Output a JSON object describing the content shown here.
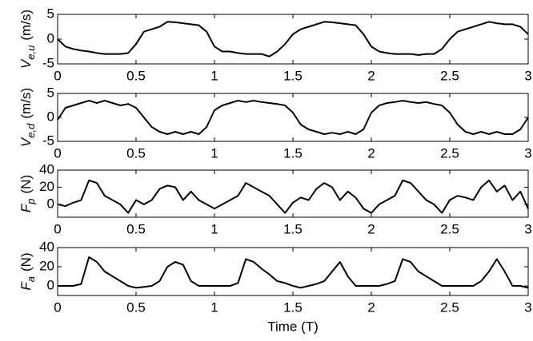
{
  "chart_data": [
    {
      "type": "line",
      "ylabel": {
        "symbol": "V",
        "subscript": "e,u",
        "unit": "(m/s)"
      },
      "x": [
        0,
        0.05,
        0.1,
        0.15,
        0.2,
        0.25,
        0.3,
        0.35,
        0.4,
        0.45,
        0.5,
        0.55,
        0.6,
        0.65,
        0.7,
        0.75,
        0.8,
        0.85,
        0.9,
        0.95,
        1,
        1.05,
        1.1,
        1.15,
        1.2,
        1.25,
        1.3,
        1.35,
        1.4,
        1.45,
        1.5,
        1.55,
        1.6,
        1.65,
        1.7,
        1.75,
        1.8,
        1.85,
        1.9,
        1.95,
        2,
        2.05,
        2.1,
        2.15,
        2.2,
        2.25,
        2.3,
        2.35,
        2.4,
        2.45,
        2.5,
        2.55,
        2.6,
        2.65,
        2.7,
        2.75,
        2.8,
        2.85,
        2.9,
        2.95,
        3
      ],
      "series": [
        {
          "color": "#000000",
          "values": [
            0,
            -1.5,
            -2,
            -2.3,
            -2.5,
            -2.8,
            -3,
            -3,
            -3,
            -2.8,
            -1,
            1.5,
            2,
            2.5,
            3.5,
            3.4,
            3.2,
            3,
            2.8,
            1.5,
            -1.5,
            -2.5,
            -2.5,
            -2.8,
            -3,
            -3,
            -3,
            -3.5,
            -2.5,
            -1,
            1,
            2,
            2.5,
            3,
            3.5,
            3.4,
            3.2,
            3,
            2.8,
            1,
            -1.5,
            -2.5,
            -2.8,
            -3,
            -3,
            -3,
            -3.2,
            -3,
            -3,
            -2,
            0,
            1.5,
            2,
            2.5,
            3,
            3.5,
            3.2,
            3,
            3,
            2.5,
            1
          ]
        }
      ],
      "xlim": [
        0,
        3
      ],
      "xticks": [
        0,
        0.5,
        1,
        1.5,
        2,
        2.5,
        3
      ],
      "ylim": [
        -5,
        5
      ],
      "yticks": [
        -5,
        0,
        5
      ]
    },
    {
      "type": "line",
      "ylabel": {
        "symbol": "V",
        "subscript": "e,d",
        "unit": "(m/s)"
      },
      "x": [
        0,
        0.05,
        0.1,
        0.15,
        0.2,
        0.25,
        0.3,
        0.35,
        0.4,
        0.45,
        0.5,
        0.55,
        0.6,
        0.65,
        0.7,
        0.75,
        0.8,
        0.85,
        0.9,
        0.95,
        1,
        1.05,
        1.1,
        1.15,
        1.2,
        1.25,
        1.3,
        1.35,
        1.4,
        1.45,
        1.5,
        1.55,
        1.6,
        1.65,
        1.7,
        1.75,
        1.8,
        1.85,
        1.9,
        1.95,
        2,
        2.05,
        2.1,
        2.15,
        2.2,
        2.25,
        2.3,
        2.35,
        2.4,
        2.45,
        2.5,
        2.55,
        2.6,
        2.65,
        2.7,
        2.75,
        2.8,
        2.85,
        2.9,
        2.95,
        3
      ],
      "series": [
        {
          "color": "#000000",
          "values": [
            -0.5,
            2,
            2.5,
            3,
            3.5,
            3,
            3.5,
            3,
            2.5,
            2.8,
            2,
            0,
            -2,
            -3,
            -3.5,
            -3,
            -3.5,
            -3,
            -3.5,
            -2,
            1.5,
            2.5,
            3,
            3.5,
            3.2,
            3.5,
            3.2,
            3,
            2.8,
            2.5,
            1,
            -1.5,
            -2.5,
            -3,
            -3.5,
            -3.2,
            -3.5,
            -3,
            -3.5,
            -2.5,
            1,
            2.5,
            3,
            3.2,
            3.5,
            3.2,
            3,
            3.2,
            2.8,
            2.5,
            1,
            -1.5,
            -3,
            -3.5,
            -3,
            -3.5,
            -3,
            -3.5,
            -3.5,
            -2.5,
            0
          ]
        }
      ],
      "xlim": [
        0,
        3
      ],
      "xticks": [
        0,
        0.5,
        1,
        1.5,
        2,
        2.5,
        3
      ],
      "ylim": [
        -5,
        5
      ],
      "yticks": [
        -5,
        0,
        5
      ]
    },
    {
      "type": "line",
      "ylabel": {
        "symbol": "F",
        "subscript": "p",
        "unit": "(N)"
      },
      "x": [
        0,
        0.05,
        0.1,
        0.15,
        0.2,
        0.25,
        0.3,
        0.35,
        0.4,
        0.45,
        0.5,
        0.55,
        0.6,
        0.65,
        0.7,
        0.75,
        0.8,
        0.85,
        0.9,
        0.95,
        1,
        1.05,
        1.1,
        1.15,
        1.2,
        1.25,
        1.3,
        1.35,
        1.4,
        1.45,
        1.5,
        1.55,
        1.6,
        1.65,
        1.7,
        1.75,
        1.8,
        1.85,
        1.9,
        1.95,
        2,
        2.05,
        2.1,
        2.15,
        2.2,
        2.25,
        2.3,
        2.35,
        2.4,
        2.45,
        2.5,
        2.55,
        2.6,
        2.65,
        2.7,
        2.75,
        2.8,
        2.85,
        2.9,
        2.95,
        3
      ],
      "series": [
        {
          "color": "#000000",
          "values": [
            0,
            -2,
            2,
            5,
            28,
            25,
            10,
            5,
            0,
            -10,
            5,
            0,
            5,
            18,
            22,
            20,
            5,
            15,
            5,
            0,
            -5,
            0,
            5,
            10,
            25,
            20,
            15,
            10,
            0,
            -10,
            2,
            8,
            5,
            18,
            25,
            20,
            5,
            15,
            8,
            -5,
            -10,
            0,
            5,
            10,
            28,
            25,
            15,
            5,
            0,
            -10,
            5,
            10,
            8,
            5,
            20,
            28,
            15,
            22,
            5,
            15,
            -5
          ]
        }
      ],
      "xlim": [
        0,
        3
      ],
      "xticks": [
        0,
        0.5,
        1,
        1.5,
        2,
        2.5,
        3
      ],
      "ylim": [
        -15,
        40
      ],
      "yticks": [
        0,
        20,
        40
      ]
    },
    {
      "type": "line",
      "ylabel": {
        "symbol": "F",
        "subscript": "a",
        "unit": "(N)"
      },
      "xlabel": "Time (T)",
      "x": [
        0,
        0.05,
        0.1,
        0.15,
        0.2,
        0.25,
        0.3,
        0.35,
        0.4,
        0.45,
        0.5,
        0.55,
        0.6,
        0.65,
        0.7,
        0.75,
        0.8,
        0.85,
        0.9,
        0.95,
        1,
        1.05,
        1.1,
        1.15,
        1.2,
        1.25,
        1.3,
        1.35,
        1.4,
        1.45,
        1.5,
        1.55,
        1.6,
        1.65,
        1.7,
        1.75,
        1.8,
        1.85,
        1.9,
        1.95,
        2,
        2.05,
        2.1,
        2.15,
        2.2,
        2.25,
        2.3,
        2.35,
        2.4,
        2.45,
        2.5,
        2.55,
        2.6,
        2.65,
        2.7,
        2.75,
        2.8,
        2.85,
        2.9,
        2.95,
        3
      ],
      "series": [
        {
          "color": "#000000",
          "values": [
            0,
            0,
            0,
            2,
            30,
            25,
            15,
            10,
            5,
            0,
            -2,
            -1,
            0,
            5,
            20,
            25,
            22,
            5,
            0,
            0,
            0,
            0,
            0,
            3,
            28,
            25,
            18,
            12,
            5,
            3,
            0,
            -2,
            0,
            2,
            5,
            15,
            25,
            10,
            0,
            0,
            0,
            0,
            2,
            5,
            28,
            25,
            15,
            10,
            5,
            0,
            0,
            0,
            0,
            0,
            5,
            15,
            28,
            15,
            0,
            0,
            -2
          ]
        }
      ],
      "xlim": [
        0,
        3
      ],
      "xticks": [
        0,
        0.5,
        1,
        1.5,
        2,
        2.5,
        3
      ],
      "ylim": [
        -10,
        40
      ],
      "yticks": [
        0,
        20,
        40
      ]
    }
  ]
}
